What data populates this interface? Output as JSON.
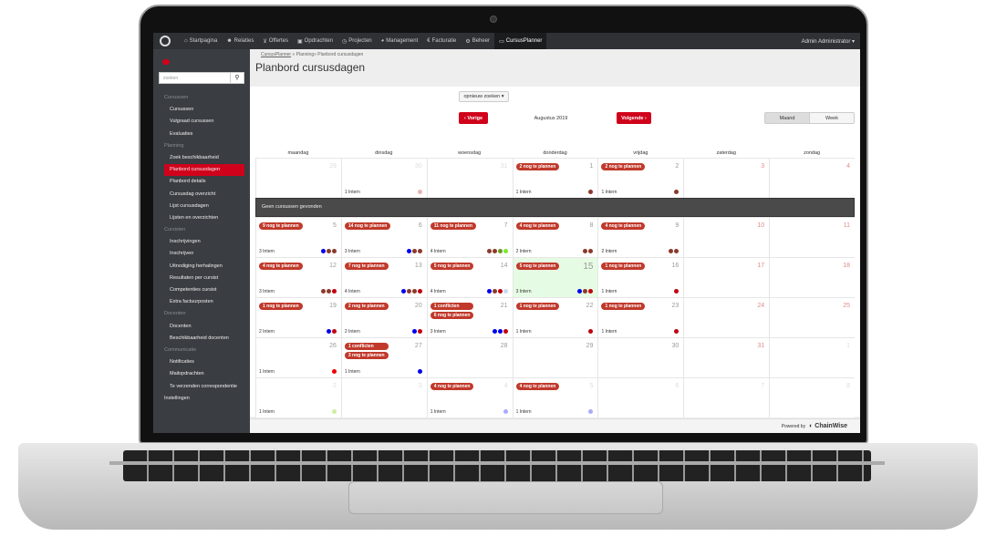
{
  "nav": {
    "items": [
      {
        "icon": "home-icon",
        "glyph": "⌂",
        "label": "Startpagina"
      },
      {
        "icon": "users-icon",
        "glyph": "☻",
        "label": "Relaties"
      },
      {
        "icon": "cart-icon",
        "glyph": "⊻",
        "label": "Offertes"
      },
      {
        "icon": "briefcase-icon",
        "glyph": "▣",
        "label": "Opdrachten"
      },
      {
        "icon": "clock-icon",
        "glyph": "◷",
        "label": "Projecten"
      },
      {
        "icon": "chart-icon",
        "glyph": "◕",
        "label": "Management"
      },
      {
        "icon": "euro-icon",
        "glyph": "€",
        "label": "Facturatie"
      },
      {
        "icon": "cogs-icon",
        "glyph": "⚙",
        "label": "Beheer"
      },
      {
        "icon": "calendar-icon",
        "glyph": "▭",
        "label": "CursusPlanner",
        "active": true
      }
    ],
    "user": "Admin Administrator ▾"
  },
  "sidebar": {
    "search_placeholder": "zoeken",
    "items": [
      {
        "type": "sec",
        "label": "Cursussen"
      },
      {
        "label": "Cursussen"
      },
      {
        "label": "Vulgraad cursussen"
      },
      {
        "label": "Evaluaties"
      },
      {
        "type": "sec",
        "label": "Planning"
      },
      {
        "label": "Zoek beschikbaarheid"
      },
      {
        "label": "Planbord cursusdagen",
        "active": true
      },
      {
        "label": "Planbord details"
      },
      {
        "label": "Cursusdag overzicht"
      },
      {
        "label": "Lijst cursusdagen"
      },
      {
        "label": "Lijsten en overzichten"
      },
      {
        "type": "sec",
        "label": "Cursisten"
      },
      {
        "label": "Inschrijvingen"
      },
      {
        "label": "Inschrijven"
      },
      {
        "label": "Uitnodiging herhalingen"
      },
      {
        "label": "Resultaten per cursist"
      },
      {
        "label": "Competenties cursist"
      },
      {
        "label": "Extra factuurposten"
      },
      {
        "type": "sec",
        "label": "Docenten"
      },
      {
        "label": "Docenten"
      },
      {
        "label": "Beschikbaarheid docenten"
      },
      {
        "type": "sec",
        "label": "Communicatie"
      },
      {
        "label": "Notificaties"
      },
      {
        "label": "Mailopdrachten"
      },
      {
        "label": "Te verzenden correspondentie"
      },
      {
        "type": "top",
        "label": "Instellingen"
      }
    ]
  },
  "breadcrumb": {
    "link": "CursusPlanner",
    "rest": " » Planning» Planbord cursusdagen"
  },
  "page_title": "Planbord cursusdagen",
  "toolbar": {
    "search_again": "opnieuw zoeken ▾",
    "prev": "‹ Vorige",
    "month_label": "Augustus 2019",
    "next": "Volgende ›",
    "view_month": "Maand",
    "view_week": "Week",
    "active_view": "Maand"
  },
  "footer": {
    "powered": "Powered by",
    "brand": "◐ ChainWise"
  },
  "colors": {
    "brown": "#8b3a2a",
    "blue": "#0000ee",
    "red": "#c0000f",
    "brightred": "#ee0000",
    "green": "#6a9a20",
    "lime": "#7ee832",
    "pink": "#e8b4b4",
    "lightblue": "#c8dcee",
    "lavender": "#aaaaff",
    "lightgreen": "#ccf0a0"
  },
  "calendar": {
    "weekdays": [
      "maandag",
      "dinsdag",
      "woensdag",
      "donderdag",
      "vrijdag",
      "zaterdag",
      "zondag"
    ],
    "banner": "Geen cursussen gevonden",
    "weeks": [
      [
        {
          "d": "29",
          "m": 1
        },
        {
          "d": "30",
          "m": 1,
          "i": "1 Intern",
          "dots": [
            "pink"
          ]
        },
        {
          "d": "31",
          "m": 1
        },
        {
          "d": "1",
          "b": [
            "2 nog te plannen"
          ],
          "i": "1 Intern",
          "dots": [
            "brown"
          ]
        },
        {
          "d": "2",
          "b": [
            "2 nog te plannen"
          ],
          "i": "1 Intern",
          "dots": [
            "brown"
          ]
        },
        {
          "d": "3",
          "w": 1
        },
        {
          "d": "4",
          "w": 1
        }
      ],
      [
        {
          "d": "5",
          "b": [
            "9 nog te plannen"
          ],
          "i": "3 Intern",
          "dots": [
            "blue",
            "brown",
            "brown"
          ]
        },
        {
          "d": "6",
          "b": [
            "14 nog te plannen"
          ],
          "i": "3 Intern",
          "dots": [
            "blue",
            "brown",
            "brown"
          ]
        },
        {
          "d": "7",
          "b": [
            "11 nog te plannen"
          ],
          "i": "4 Intern",
          "dots": [
            "brown",
            "brown",
            "green",
            "lime"
          ]
        },
        {
          "d": "8",
          "b": [
            "4 nog te plannen"
          ],
          "i": "2 Intern",
          "dots": [
            "brown",
            "brown"
          ]
        },
        {
          "d": "9",
          "b": [
            "4 nog te plannen"
          ],
          "i": "2 Intern",
          "dots": [
            "brown",
            "brown"
          ]
        },
        {
          "d": "10",
          "w": 1
        },
        {
          "d": "11",
          "w": 1
        }
      ],
      [
        {
          "d": "12",
          "b": [
            "4 nog te plannen"
          ],
          "i": "3 Intern",
          "dots": [
            "brown",
            "brown",
            "red"
          ]
        },
        {
          "d": "13",
          "b": [
            "7 nog te plannen"
          ],
          "i": "4 Intern",
          "dots": [
            "blue",
            "brown",
            "brown",
            "red"
          ]
        },
        {
          "d": "14",
          "b": [
            "5 nog te plannen"
          ],
          "i": "4 Intern",
          "dots": [
            "blue",
            "brown",
            "red",
            "lightblue"
          ]
        },
        {
          "d": "15",
          "t": 1,
          "b": [
            "5 nog te plannen"
          ],
          "i": "3 Intern",
          "dots": [
            "blue",
            "brown",
            "red"
          ]
        },
        {
          "d": "16",
          "b": [
            "1 nog te plannen"
          ],
          "i": "1 Intern",
          "dots": [
            "red"
          ]
        },
        {
          "d": "17",
          "w": 1
        },
        {
          "d": "18",
          "w": 1
        }
      ],
      [
        {
          "d": "19",
          "b": [
            "1 nog te plannen"
          ],
          "i": "2 Intern",
          "dots": [
            "blue",
            "red"
          ]
        },
        {
          "d": "20",
          "b": [
            "2 nog te plannen"
          ],
          "i": "2 Intern",
          "dots": [
            "blue",
            "red"
          ]
        },
        {
          "d": "21",
          "b": [
            "1 conflicten",
            "6 nog te plannen"
          ],
          "i": "3 Intern",
          "dots": [
            "blue",
            "blue",
            "red"
          ]
        },
        {
          "d": "22",
          "b": [
            "1 nog te plannen"
          ],
          "i": "1 Intern",
          "dots": [
            "red"
          ]
        },
        {
          "d": "23",
          "b": [
            "1 nog te plannen"
          ],
          "i": "1 Intern",
          "dots": [
            "red"
          ]
        },
        {
          "d": "24",
          "w": 1
        },
        {
          "d": "25",
          "w": 1
        }
      ],
      [
        {
          "d": "26",
          "i": "1 Intern",
          "dots": [
            "brightred"
          ]
        },
        {
          "d": "27",
          "b": [
            "1 conflicten",
            "3 nog te plannen"
          ],
          "i": "1 Intern",
          "dots": [
            "blue"
          ]
        },
        {
          "d": "28"
        },
        {
          "d": "29"
        },
        {
          "d": "30"
        },
        {
          "d": "31",
          "w": 1
        },
        {
          "d": "1",
          "m": 1
        }
      ],
      [
        {
          "d": "2",
          "m": 1,
          "i": "1 Intern",
          "dots": [
            "lightgreen"
          ]
        },
        {
          "d": "3",
          "m": 1
        },
        {
          "d": "4",
          "m": 1,
          "b": [
            "4 nog te plannen"
          ],
          "i": "1 Intern",
          "dots": [
            "lavender"
          ]
        },
        {
          "d": "5",
          "m": 1,
          "b": [
            "4 nog te plannen"
          ],
          "i": "1 Intern",
          "dots": [
            "lavender"
          ]
        },
        {
          "d": "6",
          "m": 1
        },
        {
          "d": "7",
          "m": 1
        },
        {
          "d": "8",
          "m": 1
        }
      ]
    ]
  }
}
